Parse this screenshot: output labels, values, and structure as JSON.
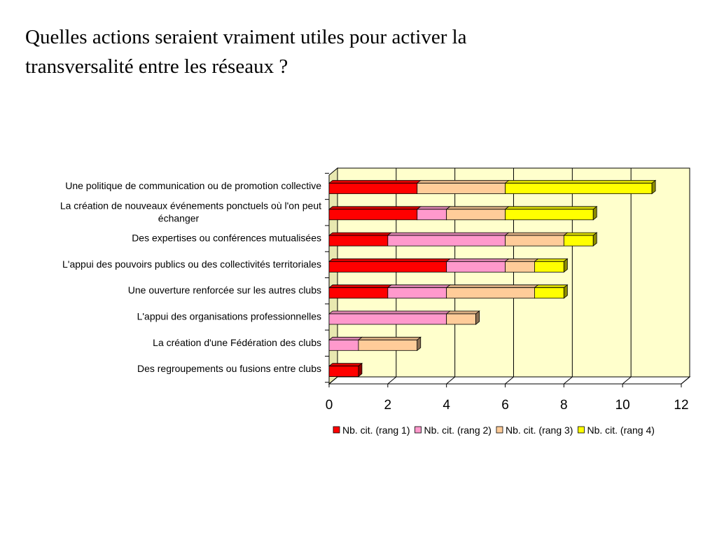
{
  "slide": {
    "title_line1": "Quelles actions seraient vraiment utiles pour activer la",
    "title_line2": "transversalité entre les réseaux ?"
  },
  "chart_data": {
    "type": "bar",
    "orientation": "horizontal",
    "stacked": true,
    "categories": [
      [
        "Une politique de communication ou de promotion collective"
      ],
      [
        "La création de nouveaux événements ponctuels où l'on peut",
        "échanger"
      ],
      [
        "Des expertises ou conférences mutualisées"
      ],
      [
        "L'appui des pouvoirs publics ou des collectivités territoriales"
      ],
      [
        "Une ouverture renforcée sur les autres clubs"
      ],
      [
        "L'appui des organisations professionnelles"
      ],
      [
        "La création d'une Fédération des clubs"
      ],
      [
        "Des regroupements ou fusions entre clubs"
      ]
    ],
    "series": [
      {
        "name": "Nb. cit. (rang 1)",
        "color": "#ff0000",
        "values": [
          3,
          3,
          2,
          4,
          2,
          0,
          0,
          1
        ]
      },
      {
        "name": "Nb. cit. (rang 2)",
        "color": "#ff99cc",
        "values": [
          0,
          1,
          4,
          2,
          2,
          4,
          1,
          0
        ]
      },
      {
        "name": "Nb. cit. (rang 3)",
        "color": "#ffcc99",
        "values": [
          3,
          2,
          2,
          1,
          3,
          1,
          2,
          0
        ]
      },
      {
        "name": "Nb. cit. (rang 4)",
        "color": "#ffff00",
        "values": [
          5,
          3,
          1,
          1,
          1,
          0,
          0,
          0
        ]
      }
    ],
    "xlim": [
      0,
      12
    ],
    "xticks": [
      0,
      2,
      4,
      6,
      8,
      10,
      12
    ],
    "grid": true,
    "legend_position": "bottom",
    "plot_background": "#ffffcc"
  }
}
